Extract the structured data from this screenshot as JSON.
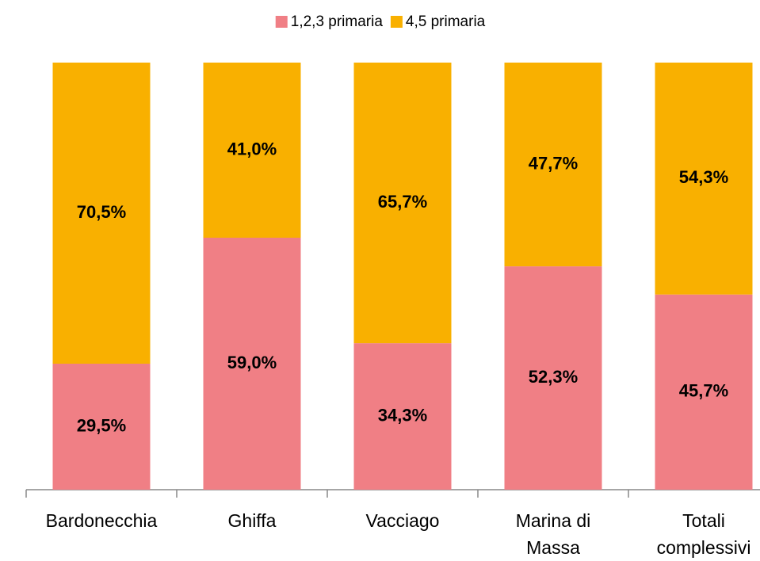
{
  "chart_data": {
    "type": "stacked_bar",
    "categories": [
      "Bardonecchia",
      "Ghiffa",
      "Vacciago",
      "Marina di Massa",
      "Totali complessivi"
    ],
    "series": [
      {
        "name": "1,2,3 primaria",
        "color": "#f07f85",
        "values": [
          29.5,
          59.0,
          34.3,
          52.3,
          45.7
        ],
        "value_labels": [
          "29,5%",
          "59,0%",
          "34,3%",
          "52,3%",
          "45,7%"
        ]
      },
      {
        "name": "4,5 primaria",
        "color": "#f9b000",
        "values": [
          70.5,
          41.0,
          65.7,
          47.7,
          54.3
        ],
        "value_labels": [
          "70,5%",
          "41,0%",
          "65,7%",
          "47,7%",
          "54,3%"
        ]
      }
    ],
    "legend": "top"
  }
}
